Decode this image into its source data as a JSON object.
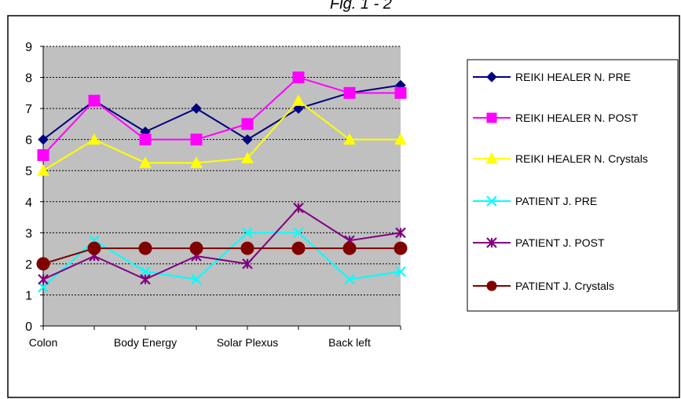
{
  "figure_title": "Fig. 1 - 2",
  "chart_data": {
    "type": "line",
    "categories": [
      "Colon",
      "",
      "Body Energy",
      "",
      "Solar Plexus",
      "",
      "Back left",
      ""
    ],
    "ylim": [
      0,
      9
    ],
    "yticks": [
      0,
      1,
      2,
      3,
      4,
      5,
      6,
      7,
      8,
      9
    ],
    "grid": true,
    "legend_position": "right",
    "plot_background": "#c0c0c0",
    "series": [
      {
        "name": "REIKI HEALER N. PRE",
        "color": "#000080",
        "marker": "diamond",
        "values": [
          6,
          7.25,
          6.25,
          7,
          6,
          7,
          7.5,
          7.75
        ]
      },
      {
        "name": "REIKI HEALER N. POST",
        "color": "#ff00ff",
        "marker": "square",
        "values": [
          5.5,
          7.25,
          6,
          6,
          6.5,
          8,
          7.5,
          7.5
        ]
      },
      {
        "name": "REIKI HEALER N. Crystals",
        "color": "#ffff00",
        "marker": "triangle",
        "values": [
          5,
          6,
          5.25,
          5.25,
          5.4,
          7.25,
          6,
          6
        ]
      },
      {
        "name": "PATIENT J. PRE",
        "color": "#00ffff",
        "marker": "x",
        "values": [
          1.25,
          2.75,
          1.75,
          1.5,
          3,
          3,
          1.5,
          1.75
        ]
      },
      {
        "name": "PATIENT J. POST",
        "color": "#800080",
        "marker": "star",
        "values": [
          1.5,
          2.25,
          1.5,
          2.25,
          2,
          3.8,
          2.75,
          3
        ]
      },
      {
        "name": "PATIENT J. Crystals",
        "color": "#800000",
        "marker": "circle",
        "values": [
          2,
          2.5,
          2.5,
          2.5,
          2.5,
          2.5,
          2.5,
          2.5
        ]
      }
    ]
  }
}
